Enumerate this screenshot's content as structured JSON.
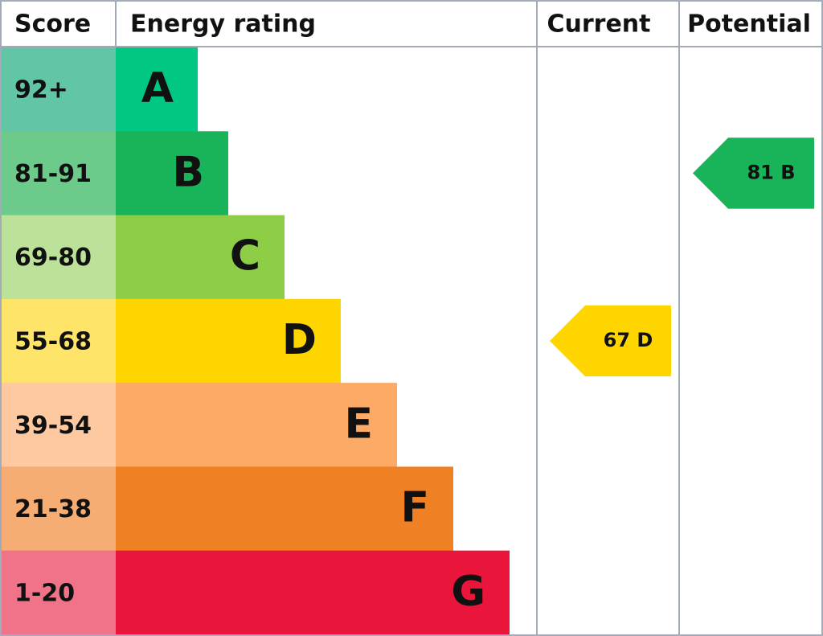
{
  "header": [
    "Score",
    "Energy rating",
    "Current",
    "Potential"
  ],
  "rows": [
    {
      "score": "92+",
      "rating": "A",
      "color": "#00c781",
      "score_color": "#62c6a6"
    },
    {
      "score": "81-91",
      "rating": "B",
      "color": "#19b459",
      "score_color": "#6ccb8a"
    },
    {
      "score": "69-80",
      "rating": "C",
      "color": "#8dce46",
      "score_color": "#bce29a"
    },
    {
      "score": "55-68",
      "rating": "D",
      "color": "#ffd500",
      "score_color": "#ffe46a"
    },
    {
      "score": "39-54",
      "rating": "E",
      "color": "#fcaa65",
      "score_color": "#fec9a0"
    },
    {
      "score": "21-38",
      "rating": "F",
      "color": "#ef8023",
      "score_color": "#f5ad73"
    },
    {
      "score": "1-20",
      "rating": "G",
      "color": "#e9153b",
      "score_color": "#f07389"
    }
  ],
  "current": {
    "score": 67,
    "rating": "D"
  },
  "potential": {
    "score": 81,
    "rating": "B"
  }
}
